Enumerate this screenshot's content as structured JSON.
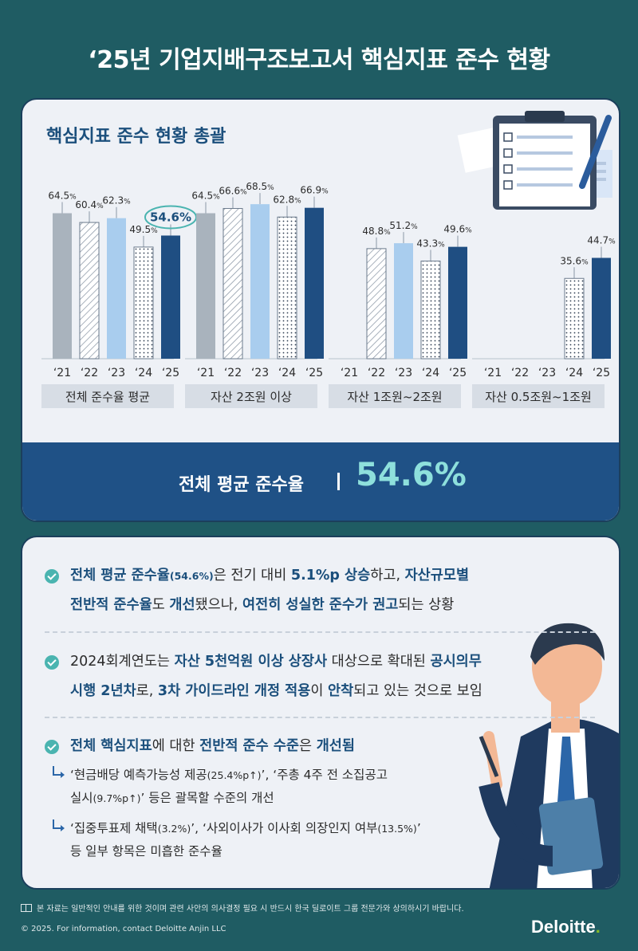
{
  "title": "‘25년 기업지배구조보고서 핵심지표 준수 현황",
  "chart_section": {
    "title": "핵심지표 준수 현황 총괄",
    "highlight_value": "54.6%"
  },
  "chart_data": {
    "type": "bar",
    "x": [
      "‘21",
      "‘22",
      "‘23",
      "‘24",
      "‘25"
    ],
    "ylim": [
      0,
      100
    ],
    "unit": "%",
    "groups": [
      {
        "label": "전체 준수율 평균",
        "values": [
          64.5,
          60.4,
          62.3,
          49.5,
          54.6
        ]
      },
      {
        "label": "자산 2조원 이상",
        "values": [
          64.5,
          66.6,
          68.5,
          62.8,
          66.9
        ]
      },
      {
        "label": "자산 1조원~2조원",
        "values": [
          null,
          48.8,
          51.2,
          43.3,
          49.6
        ]
      },
      {
        "label": "자산 0.5조원~1조원",
        "values": [
          null,
          null,
          null,
          35.6,
          44.7
        ]
      }
    ],
    "year_styles": [
      {
        "fill": "#a9b3bd",
        "pattern": "solid"
      },
      {
        "fill": "#ffffff",
        "pattern": "hatch"
      },
      {
        "fill": "#a9cdee",
        "pattern": "solid"
      },
      {
        "fill": "#ffffff",
        "pattern": "dots"
      },
      {
        "fill": "#1f4e82",
        "pattern": "solid"
      }
    ]
  },
  "banner": {
    "label": "전체 평균 준수율",
    "value": "54.6%"
  },
  "bullets": {
    "b1": {
      "s1": "전체 평균 준수율",
      "s2": "(54.6%)",
      "s3": "은 전기 대비 ",
      "s4": "5.1%p 상승",
      "s5": "하고, ",
      "s6": "자산규모별",
      "s7": "전반적 준수율",
      "s8": "도 ",
      "s9": "개선",
      "s10": "됐으나, ",
      "s11": "여전히 성실한 준수가 권고",
      "s12": "되는 상황"
    },
    "b2": {
      "s1": "2024회계연도는 ",
      "s2": "자산 5천억원 이상 상장사",
      "s3": " 대상으로 확대된 ",
      "s4": "공시의무",
      "s5": "시행 2년차",
      "s6": "로, ",
      "s7": "3차 가이드라인 개정 적용",
      "s8": "이 ",
      "s9": "안착",
      "s10": "되고 있는 것으로 보임"
    },
    "b3": {
      "s1": "전체 핵심지표",
      "s2": "에 대한 ",
      "s3": "전반적 준수 수준",
      "s4": "은 ",
      "s5": "개선됨"
    },
    "sub1": {
      "s1": "‘현금배당 예측가능성 제공",
      "s2": "(25.4%p↑)",
      "s3": "’, ‘주총 4주 전 소집공고",
      "s4": "실시",
      "s5": "(9.7%p↑)",
      "s6": "’ 등은 괄목할 수준의 개선"
    },
    "sub2": {
      "s1": "‘집중투표제 채택",
      "s2": "(3.2%)",
      "s3": "’, ‘사외이사가 이사회 의장인지 여부",
      "s4": "(13.5%)",
      "s5": "’",
      "s6": "등 일부 항목은 미흡한 준수율"
    }
  },
  "footer": {
    "note": "본 자료는 일반적인 안내를 위한 것이며 관련 사안의 의사결정 필요 시 반드시 한국 딜로이트 그룹 전문가와 상의하시기 바랍니다.",
    "copyright": "© 2025. For information, contact Deloitte Anjin LLC",
    "logo": "Deloitte",
    "logo_dot": "."
  },
  "colors": {
    "background": "#1f5c63",
    "card": "#eef1f6",
    "banner": "#1f5186",
    "accent": "#4ab4b0",
    "brand_green": "#86bc25"
  }
}
